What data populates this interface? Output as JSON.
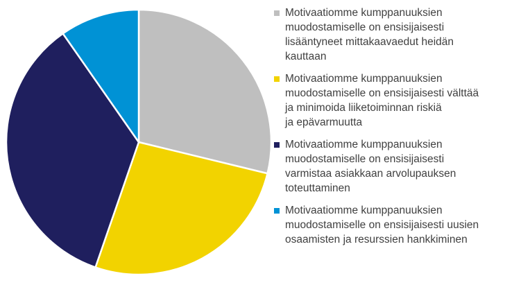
{
  "chart_data": {
    "type": "pie",
    "title": "",
    "slices": [
      {
        "label": "Motivaatiomme kumppanuuksien\nmuodostamiselle on ensisijaisesti\nlisääntyneet mittakaavaedut heidän\nkauttaan",
        "value": 28.8,
        "color": "#BFBFBF"
      },
      {
        "label": "Motivaatiomme kumppanuuksien\nmuodostamiselle on ensisijaisesti välttää\nja minimoida liiketoiminnan riskiä\nja epävarmuutta",
        "value": 26.5,
        "color": "#F2D300"
      },
      {
        "label": "Motivaatiomme kumppanuuksien\nmuodostamiselle on ensisijaisesti\nvarmistaa asiakkaan arvolupauksen\ntoteuttaminen",
        "value": 35.0,
        "color": "#1F1F5E"
      },
      {
        "label": "Motivaatiomme kumppanuuksien\nmuodostamiselle on ensisijaisesti uusien\nosaamisten ja resurssien hankkiminen",
        "value": 9.7,
        "color": "#0092D5"
      }
    ],
    "legend_position": "right",
    "start_angle": "12 o'clock",
    "direction": "clockwise"
  }
}
